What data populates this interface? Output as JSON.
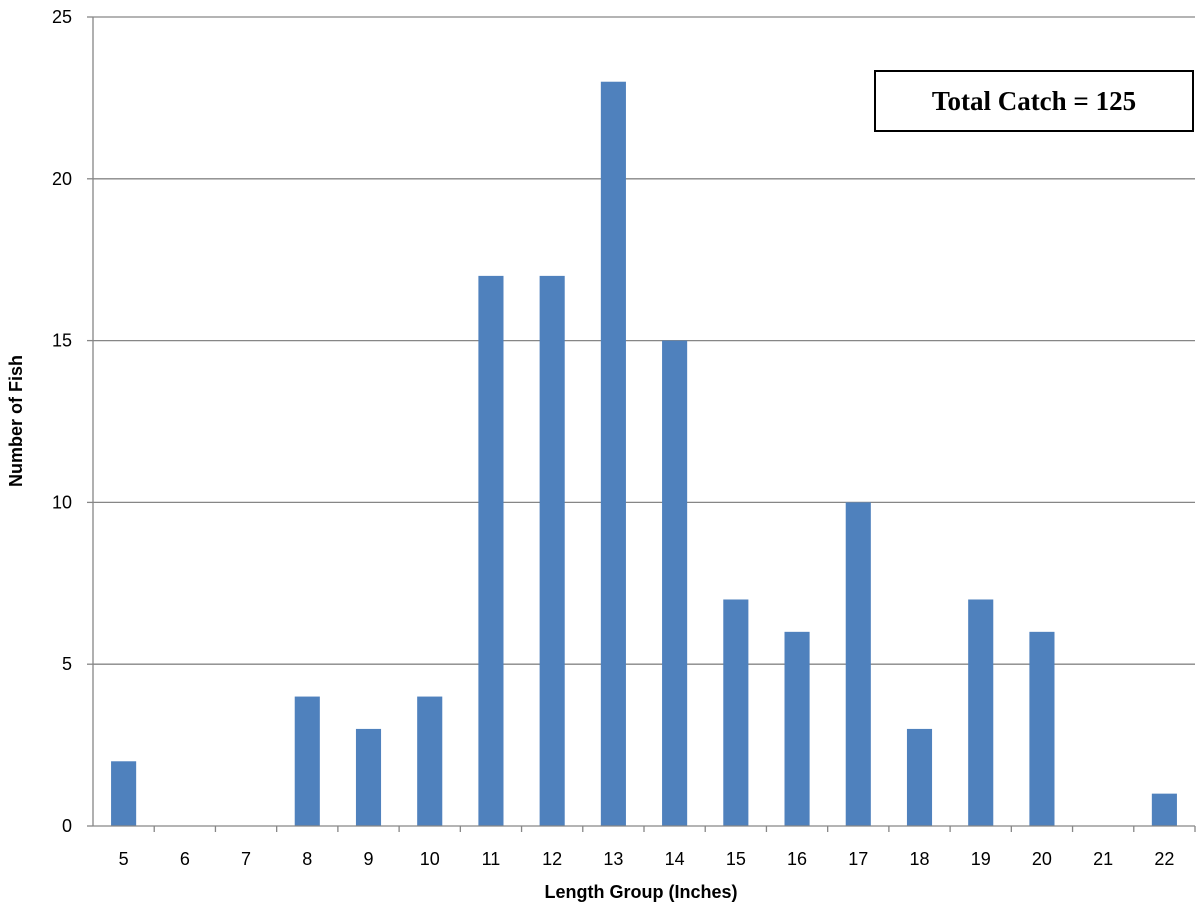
{
  "chart_data": {
    "type": "bar",
    "categories": [
      "5",
      "6",
      "7",
      "8",
      "9",
      "10",
      "11",
      "12",
      "13",
      "14",
      "15",
      "16",
      "17",
      "18",
      "19",
      "20",
      "21",
      "22"
    ],
    "values": [
      2,
      0,
      0,
      4,
      3,
      4,
      17,
      17,
      23,
      15,
      7,
      6,
      10,
      3,
      7,
      6,
      0,
      1
    ],
    "xlabel": "Length Group (Inches)",
    "ylabel": "Number of Fish",
    "ylim": [
      0,
      25
    ],
    "yticks": [
      0,
      5,
      10,
      15,
      20,
      25
    ],
    "grid": true,
    "bar_color": "#4F81BD",
    "annotation": "Total Catch = 125"
  }
}
